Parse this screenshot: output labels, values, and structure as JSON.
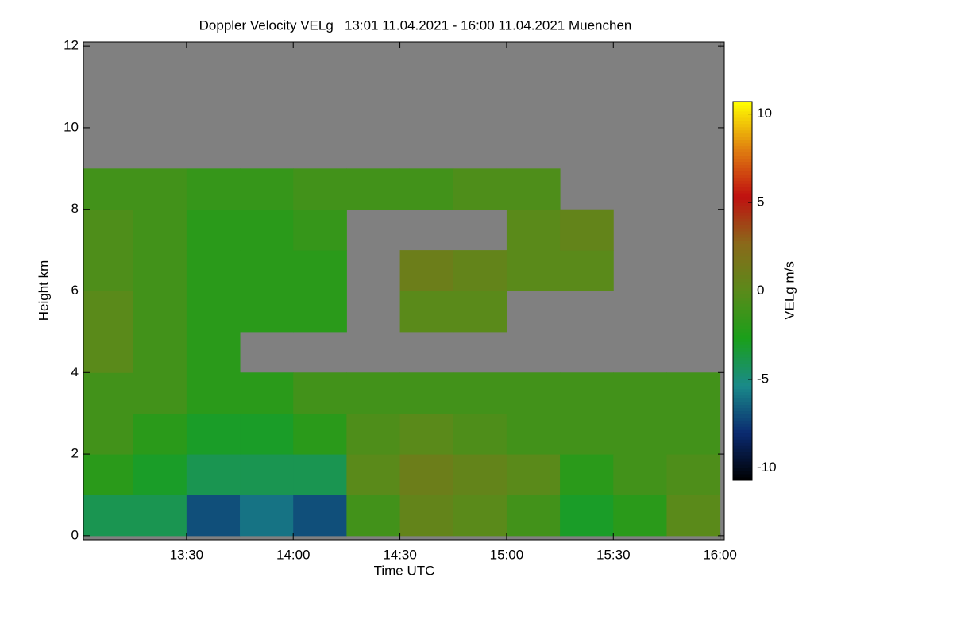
{
  "chart_data": {
    "type": "heatmap",
    "title": "Doppler Velocity VELg   13:01 11.04.2021 - 16:00 11.04.2021 Muenchen",
    "xlabel": "Time UTC",
    "ylabel": "Height km",
    "xlim": [
      13.0167,
      16.02
    ],
    "ylim": [
      -0.1,
      12.1
    ],
    "xticks": [
      {
        "value": 13.5,
        "label": "13:30"
      },
      {
        "value": 14.0,
        "label": "14:00"
      },
      {
        "value": 14.5,
        "label": "14:30"
      },
      {
        "value": 15.0,
        "label": "15:00"
      },
      {
        "value": 15.5,
        "label": "15:30"
      },
      {
        "value": 16.0,
        "label": "16:00"
      }
    ],
    "yticks": [
      0,
      2,
      4,
      6,
      8,
      10,
      12
    ],
    "xbins": [
      13.0167,
      13.25,
      13.5,
      13.75,
      14.0,
      14.25,
      14.5,
      14.75,
      15.0,
      15.25,
      15.5,
      15.75,
      16.0
    ],
    "ybins": [
      0,
      1,
      2,
      3,
      4,
      5,
      6,
      7,
      8,
      9,
      10,
      11,
      12
    ],
    "z": [
      [
        -4,
        -4,
        -7,
        -6,
        -7,
        -1,
        0.5,
        0,
        -1,
        -3,
        -2,
        0
      ],
      [
        -2,
        -3,
        -4,
        -4,
        -4,
        0,
        1,
        0.5,
        0,
        -2,
        -1,
        -0.5
      ],
      [
        -1,
        -2,
        -3,
        -3,
        -2,
        -0.5,
        0,
        -0.5,
        -1,
        -1,
        -1,
        -1
      ],
      [
        -1,
        -1,
        -2,
        -2,
        -1,
        -1,
        -1,
        -1,
        -1,
        -1,
        -1,
        -1
      ],
      [
        0,
        -1,
        -2,
        null,
        null,
        null,
        null,
        null,
        null,
        null,
        null,
        null
      ],
      [
        0,
        -1,
        -2,
        -2,
        -2,
        null,
        0,
        0,
        null,
        null,
        null,
        null
      ],
      [
        -0.5,
        -1,
        -2,
        -2,
        -2,
        null,
        1,
        0.5,
        0,
        0,
        null,
        null
      ],
      [
        -0.5,
        -1,
        -2,
        -2,
        -1.5,
        null,
        null,
        null,
        0,
        0.5,
        null,
        null
      ],
      [
        -1,
        -1,
        -1.5,
        -1.5,
        -1,
        -1,
        -1,
        -0.5,
        -0.5,
        null,
        null,
        null
      ],
      [
        null,
        null,
        null,
        null,
        null,
        null,
        null,
        null,
        null,
        null,
        null,
        null
      ],
      [
        null,
        null,
        null,
        null,
        null,
        null,
        null,
        null,
        null,
        null,
        null,
        null
      ],
      [
        null,
        null,
        null,
        null,
        null,
        null,
        null,
        null,
        null,
        null,
        null,
        null
      ]
    ],
    "nodata_color": "#808080",
    "colormap": [
      "#000000",
      "#0a2a70",
      "#1a8a8a",
      "#1aa01a",
      "#5a8a1a",
      "#8a6a1a",
      "#c01010",
      "#e08010",
      "#ffff00"
    ],
    "colorbar": {
      "label": "VELg m/s",
      "lim": [
        -10.7,
        10.7
      ],
      "ticks": [
        -10,
        -5,
        0,
        5,
        10
      ]
    }
  }
}
